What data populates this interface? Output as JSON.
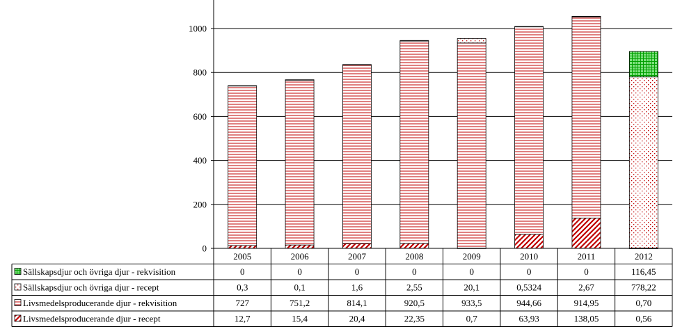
{
  "chart_data": {
    "type": "bar",
    "stacked": true,
    "categories": [
      "2005",
      "2006",
      "2007",
      "2008",
      "2009",
      "2010",
      "2011",
      "2012"
    ],
    "ylim": [
      0,
      1000
    ],
    "yticks": [
      0,
      200,
      400,
      600,
      800,
      1000
    ],
    "grid": true,
    "legend_placement": "data-table-left",
    "series": [
      {
        "name": "Livsmedelsproducerande djur - recept",
        "values": [
          12.7,
          15.4,
          20.4,
          22.35,
          0.7,
          63.93,
          138.05,
          0.56
        ],
        "cells": [
          "12,7",
          "15,4",
          "20,4",
          "22,35",
          "0,7",
          "63,93",
          "138,05",
          "0,56"
        ],
        "pattern": "diagonal",
        "color": "#c00000"
      },
      {
        "name": "Livsmedelsproducerande djur - rekvisition",
        "values": [
          727,
          751.2,
          814.1,
          920.5,
          933.5,
          944.66,
          914.95,
          0.7
        ],
        "cells": [
          "727",
          "751,2",
          "814,1",
          "920,5",
          "933,5",
          "944,66",
          "914,95",
          "0,70"
        ],
        "pattern": "horizontal",
        "color": "#c00000"
      },
      {
        "name": "Sällskapsdjur och övriga djur - recept",
        "values": [
          0.3,
          0.1,
          1.6,
          2.55,
          20.1,
          0.5324,
          2.67,
          778.22
        ],
        "cells": [
          "0,3",
          "0,1",
          "1,6",
          "2,55",
          "20,1",
          "0,5324",
          "2,67",
          "778,22"
        ],
        "pattern": "dotted",
        "color": "#c00000"
      },
      {
        "name": "Sällskapsdjur och övriga djur - rekvisition",
        "values": [
          0,
          0,
          0,
          0,
          0,
          0,
          0,
          116.45
        ],
        "cells": [
          "0",
          "0",
          "0",
          "0",
          "0",
          "0",
          "0",
          "116,45"
        ],
        "pattern": "grid",
        "color": "#00a000"
      }
    ]
  }
}
